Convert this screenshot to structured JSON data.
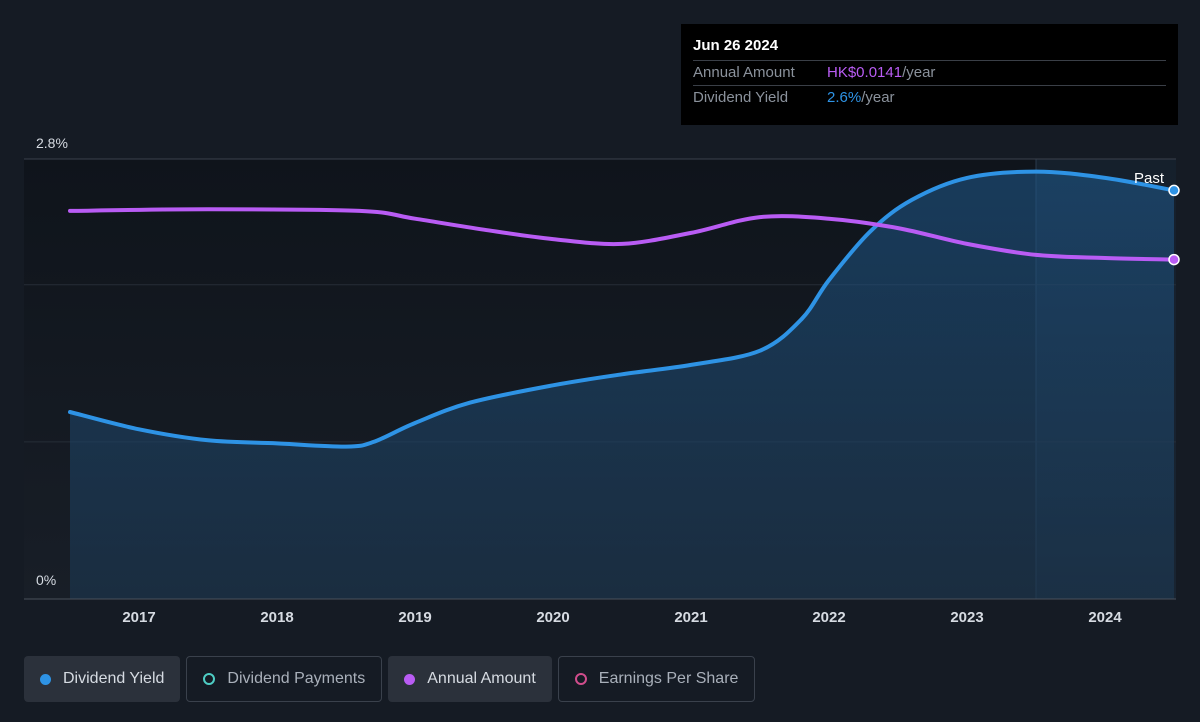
{
  "tooltip": {
    "date": "Jun 26 2024",
    "rows": [
      {
        "label": "Annual Amount",
        "value": "HK$0.0141",
        "unit": "/year"
      },
      {
        "label": "Dividend Yield",
        "value": "2.6%",
        "unit": "/year"
      }
    ]
  },
  "past_label": "Past",
  "legend": [
    {
      "label": "Dividend Yield",
      "color": "#2e93e5",
      "style": "filled",
      "active": true
    },
    {
      "label": "Dividend Payments",
      "color": "#4ecdc4",
      "style": "ring",
      "active": false
    },
    {
      "label": "Annual Amount",
      "color": "#b95cf4",
      "style": "filled",
      "active": true
    },
    {
      "label": "Earnings Per Share",
      "color": "#d04d8c",
      "style": "ring",
      "active": false
    }
  ],
  "chart_data": {
    "type": "line",
    "y_tick_labels": [
      "2.8%",
      "0%"
    ],
    "ylim": [
      0,
      2.8
    ],
    "xlim": [
      2016.5,
      2024.5
    ],
    "x_ticks": [
      2017,
      2018,
      2019,
      2020,
      2021,
      2022,
      2023,
      2024
    ],
    "past_region_start": 2023.5,
    "series": [
      {
        "name": "Dividend Yield",
        "color": "#2e93e5",
        "fill": true,
        "points": [
          [
            2016.5,
            1.19
          ],
          [
            2017.0,
            1.08
          ],
          [
            2017.5,
            1.01
          ],
          [
            2018.0,
            0.99
          ],
          [
            2018.5,
            0.97
          ],
          [
            2018.7,
            1.0
          ],
          [
            2019.0,
            1.12
          ],
          [
            2019.4,
            1.25
          ],
          [
            2020.0,
            1.36
          ],
          [
            2020.5,
            1.43
          ],
          [
            2021.0,
            1.49
          ],
          [
            2021.5,
            1.58
          ],
          [
            2021.8,
            1.78
          ],
          [
            2022.0,
            2.03
          ],
          [
            2022.3,
            2.34
          ],
          [
            2022.6,
            2.54
          ],
          [
            2023.0,
            2.68
          ],
          [
            2023.5,
            2.72
          ],
          [
            2024.0,
            2.68
          ],
          [
            2024.5,
            2.6
          ]
        ]
      },
      {
        "name": "Annual Amount",
        "color": "#b95cf4",
        "fill": false,
        "points": [
          [
            2016.5,
            2.47
          ],
          [
            2017.5,
            2.48
          ],
          [
            2018.6,
            2.47
          ],
          [
            2019.0,
            2.42
          ],
          [
            2019.5,
            2.35
          ],
          [
            2020.0,
            2.29
          ],
          [
            2020.5,
            2.26
          ],
          [
            2021.0,
            2.33
          ],
          [
            2021.5,
            2.43
          ],
          [
            2022.0,
            2.42
          ],
          [
            2022.5,
            2.36
          ],
          [
            2023.0,
            2.26
          ],
          [
            2023.5,
            2.19
          ],
          [
            2024.0,
            2.17
          ],
          [
            2024.5,
            2.16
          ]
        ]
      }
    ]
  }
}
